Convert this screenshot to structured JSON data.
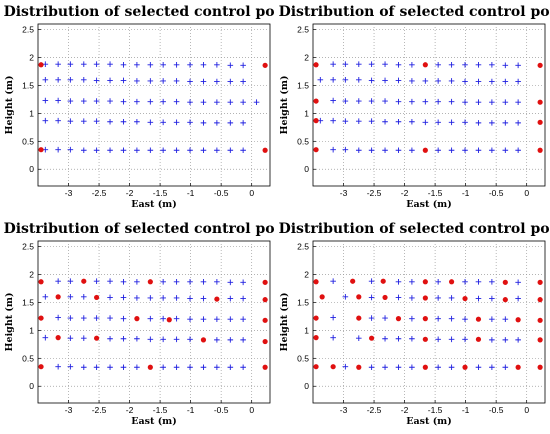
{
  "colors": {
    "candidate_marker": "#1f1fe0",
    "selected_marker": "#e01010",
    "grid": "#9a9a9a"
  },
  "chart_data": [
    {
      "type": "scatter",
      "title": "Distribution of selected control points",
      "xlabel": "East (m)",
      "ylabel": "Height (m)",
      "xlim": [
        -3.5,
        0.3
      ],
      "ylim": [
        -0.3,
        2.6
      ],
      "xticks": [
        -3,
        -2.5,
        -2,
        -1.5,
        -1,
        -0.5,
        0
      ],
      "xtick_labels": [
        "-3",
        "-2.5",
        "-2",
        "-1.5",
        "-1",
        "-0.5",
        "0"
      ],
      "yticks": [
        0,
        0.5,
        1,
        1.5,
        2,
        2.5
      ],
      "ytick_labels": [
        "0",
        "0.5",
        "1",
        "1.5",
        "2",
        "2.5"
      ],
      "grid": true,
      "series": [
        {
          "marker": "plus",
          "x": [
            -3.38,
            -3.17,
            -2.97,
            -2.75,
            -2.54,
            -2.32,
            -2.1,
            -1.88,
            -1.66,
            -1.45,
            -1.23,
            -1.01,
            -0.79,
            -0.57,
            -0.35,
            -0.14,
            -3.38,
            -3.17,
            -2.97,
            -2.75,
            -2.54,
            -2.32,
            -2.1,
            -1.88,
            -1.66,
            -1.45,
            -1.23,
            -1.01,
            -0.79,
            -0.57,
            -0.35,
            -0.14,
            -3.38,
            -3.17,
            -2.97,
            -2.75,
            -2.54,
            -2.32,
            -2.1,
            -1.88,
            -1.66,
            -1.45,
            -1.23,
            -1.01,
            -0.79,
            -0.57,
            -0.35,
            -0.14,
            -3.38,
            -3.17,
            -2.97,
            -2.75,
            -2.54,
            -2.32,
            -2.1,
            -1.88,
            -1.66,
            -1.45,
            -1.23,
            -1.01,
            -0.79,
            -0.57,
            -0.35,
            -0.14,
            -3.38,
            -3.17,
            -2.97,
            -2.75,
            -2.54,
            -2.32,
            -2.1,
            -1.88,
            -1.66,
            -1.45,
            -1.23,
            -1.01,
            -0.79,
            -0.57,
            -0.35,
            -0.14,
            0.08
          ],
          "y": [
            1.88,
            1.88,
            1.88,
            1.88,
            1.88,
            1.88,
            1.87,
            1.87,
            1.87,
            1.87,
            1.87,
            1.87,
            1.87,
            1.87,
            1.86,
            1.86,
            1.6,
            1.6,
            1.6,
            1.6,
            1.59,
            1.59,
            1.59,
            1.58,
            1.58,
            1.58,
            1.58,
            1.57,
            1.57,
            1.57,
            1.57,
            1.57,
            1.23,
            1.23,
            1.22,
            1.22,
            1.22,
            1.22,
            1.21,
            1.21,
            1.21,
            1.21,
            1.21,
            1.2,
            1.2,
            1.2,
            1.2,
            1.2,
            0.87,
            0.87,
            0.86,
            0.86,
            0.86,
            0.85,
            0.85,
            0.85,
            0.84,
            0.84,
            0.84,
            0.84,
            0.83,
            0.83,
            0.83,
            0.83,
            0.35,
            0.35,
            0.35,
            0.34,
            0.34,
            0.34,
            0.34,
            0.34,
            0.34,
            0.34,
            0.34,
            0.34,
            0.34,
            0.34,
            0.34,
            0.34,
            1.2
          ]
        },
        {
          "marker": "dot",
          "x": [
            -3.45,
            0.22,
            -3.45,
            0.22
          ],
          "y": [
            1.87,
            1.86,
            0.35,
            0.34
          ]
        }
      ]
    },
    {
      "type": "scatter",
      "title": "Distribution of selected control points",
      "xlabel": "East (m)",
      "ylabel": "Height (m)",
      "xlim": [
        -3.5,
        0.3
      ],
      "ylim": [
        -0.3,
        2.6
      ],
      "xticks": [
        -3,
        -2.5,
        -2,
        -1.5,
        -1,
        -0.5,
        0
      ],
      "xtick_labels": [
        "-3",
        "-2.5",
        "-2",
        "-1.5",
        "-1",
        "-0.5",
        "0"
      ],
      "yticks": [
        0,
        0.5,
        1,
        1.5,
        2,
        2.5
      ],
      "ytick_labels": [
        "0",
        "0.5",
        "1",
        "1.5",
        "2",
        "2.5"
      ],
      "grid": true,
      "series": [
        {
          "marker": "plus",
          "x": [
            -3.17,
            -2.97,
            -2.75,
            -2.54,
            -2.32,
            -2.1,
            -1.88,
            -1.45,
            -1.23,
            -1.01,
            -0.79,
            -0.57,
            -0.35,
            -0.14,
            -3.38,
            -3.17,
            -2.97,
            -2.75,
            -2.54,
            -2.32,
            -2.1,
            -1.88,
            -1.66,
            -1.45,
            -1.23,
            -1.01,
            -0.79,
            -0.57,
            -0.35,
            -0.14,
            -3.17,
            -2.97,
            -2.75,
            -2.54,
            -2.32,
            -2.1,
            -1.88,
            -1.66,
            -1.45,
            -1.23,
            -1.01,
            -0.79,
            -0.57,
            -0.35,
            -0.14,
            -3.38,
            -3.17,
            -2.97,
            -2.75,
            -2.54,
            -2.32,
            -2.1,
            -1.88,
            -1.66,
            -1.45,
            -1.23,
            -1.01,
            -0.79,
            -0.57,
            -0.35,
            -0.14,
            -3.17,
            -2.97,
            -2.75,
            -2.54,
            -2.32,
            -2.1,
            -1.88,
            -1.45,
            -1.23,
            -1.01,
            -0.79,
            -0.57,
            -0.35,
            -0.14
          ],
          "y": [
            1.88,
            1.88,
            1.88,
            1.88,
            1.88,
            1.87,
            1.87,
            1.87,
            1.87,
            1.87,
            1.87,
            1.87,
            1.86,
            1.86,
            1.6,
            1.6,
            1.6,
            1.6,
            1.59,
            1.59,
            1.59,
            1.58,
            1.58,
            1.58,
            1.58,
            1.57,
            1.57,
            1.57,
            1.57,
            1.57,
            1.23,
            1.22,
            1.22,
            1.22,
            1.22,
            1.21,
            1.21,
            1.21,
            1.21,
            1.21,
            1.2,
            1.2,
            1.2,
            1.2,
            1.2,
            0.87,
            0.87,
            0.86,
            0.86,
            0.86,
            0.85,
            0.85,
            0.85,
            0.84,
            0.84,
            0.84,
            0.84,
            0.83,
            0.83,
            0.83,
            0.83,
            0.35,
            0.35,
            0.34,
            0.34,
            0.34,
            0.34,
            0.34,
            0.34,
            0.34,
            0.34,
            0.34,
            0.34,
            0.34,
            0.34
          ]
        },
        {
          "marker": "dot",
          "x": [
            -3.45,
            -1.66,
            0.22,
            -3.45,
            0.22,
            -3.45,
            0.22,
            -1.66,
            -3.45,
            0.22
          ],
          "y": [
            1.87,
            1.87,
            1.86,
            1.22,
            1.2,
            0.87,
            0.84,
            0.34,
            0.35,
            0.34
          ]
        }
      ]
    },
    {
      "type": "scatter",
      "title": "Distribution of selected control points",
      "xlabel": "East (m)",
      "ylabel": "Height (m)",
      "xlim": [
        -3.5,
        0.3
      ],
      "ylim": [
        -0.3,
        2.6
      ],
      "xticks": [
        -3,
        -2.5,
        -2,
        -1.5,
        -1,
        -0.5,
        0
      ],
      "xtick_labels": [
        "-3",
        "-2.5",
        "-2",
        "-1.5",
        "-1",
        "-0.5",
        "0"
      ],
      "yticks": [
        0,
        0.5,
        1,
        1.5,
        2,
        2.5
      ],
      "ytick_labels": [
        "0",
        "0.5",
        "1",
        "1.5",
        "2",
        "2.5"
      ],
      "grid": true,
      "series": [
        {
          "marker": "plus",
          "x": [
            -3.17,
            -2.97,
            -2.54,
            -2.32,
            -2.1,
            -1.88,
            -1.45,
            -1.23,
            -1.01,
            -0.79,
            -0.57,
            -0.35,
            -0.14,
            -3.38,
            -2.97,
            -2.75,
            -2.32,
            -2.1,
            -1.88,
            -1.66,
            -1.45,
            -1.23,
            -1.01,
            -0.79,
            -0.35,
            -0.14,
            -3.17,
            -2.97,
            -2.75,
            -2.54,
            -2.32,
            -2.1,
            -1.66,
            -1.45,
            -1.23,
            -1.01,
            -0.79,
            -0.57,
            -0.35,
            -0.14,
            -3.38,
            -2.97,
            -2.75,
            -2.32,
            -2.1,
            -1.88,
            -1.66,
            -1.45,
            -1.23,
            -1.01,
            -0.57,
            -0.35,
            -0.14,
            -3.17,
            -2.97,
            -2.75,
            -2.54,
            -2.32,
            -2.1,
            -1.88,
            -1.45,
            -1.23,
            -1.01,
            -0.79,
            -0.57,
            -0.35,
            -0.14
          ],
          "y": [
            1.88,
            1.88,
            1.88,
            1.88,
            1.87,
            1.87,
            1.87,
            1.87,
            1.87,
            1.87,
            1.87,
            1.86,
            1.86,
            1.6,
            1.6,
            1.6,
            1.59,
            1.59,
            1.58,
            1.58,
            1.58,
            1.58,
            1.57,
            1.57,
            1.57,
            1.57,
            1.23,
            1.22,
            1.22,
            1.22,
            1.22,
            1.21,
            1.21,
            1.21,
            1.21,
            1.2,
            1.2,
            1.2,
            1.2,
            1.2,
            0.87,
            0.86,
            0.86,
            0.85,
            0.85,
            0.85,
            0.84,
            0.84,
            0.84,
            0.84,
            0.83,
            0.83,
            0.83,
            0.35,
            0.35,
            0.34,
            0.34,
            0.34,
            0.34,
            0.34,
            0.34,
            0.34,
            0.34,
            0.34,
            0.34,
            0.34,
            0.34
          ]
        },
        {
          "marker": "dot",
          "x": [
            -3.45,
            -2.75,
            -1.66,
            0.22,
            -3.17,
            -2.54,
            -0.57,
            0.22,
            -3.45,
            -1.88,
            -1.35,
            0.22,
            -3.17,
            -2.54,
            -0.79,
            0.22,
            -3.45,
            -1.66,
            0.22
          ],
          "y": [
            1.87,
            1.88,
            1.87,
            1.86,
            1.6,
            1.59,
            1.56,
            1.55,
            1.22,
            1.21,
            1.19,
            1.18,
            0.87,
            0.86,
            0.83,
            0.8,
            0.35,
            0.34,
            0.34
          ]
        }
      ]
    },
    {
      "type": "scatter",
      "title": "Distribution of selected control points",
      "xlabel": "East (m)",
      "ylabel": "Height (m)",
      "xlim": [
        -3.5,
        0.3
      ],
      "ylim": [
        -0.3,
        2.6
      ],
      "xticks": [
        -3,
        -2.5,
        -2,
        -1.5,
        -1,
        -0.5,
        0
      ],
      "xtick_labels": [
        "-3",
        "-2.5",
        "-2",
        "-1.5",
        "-1",
        "-0.5",
        "0"
      ],
      "yticks": [
        0,
        0.5,
        1,
        1.5,
        2,
        2.5
      ],
      "ytick_labels": [
        "0",
        "0.5",
        "1",
        "1.5",
        "2",
        "2.5"
      ],
      "grid": true,
      "series": [
        {
          "marker": "plus",
          "x": [
            -3.17,
            -2.54,
            -2.1,
            -1.88,
            -1.45,
            -1.01,
            -0.79,
            -0.57,
            -0.14,
            -2.97,
            -2.54,
            -2.1,
            -1.88,
            -1.45,
            -1.23,
            -0.79,
            -0.57,
            -0.14,
            -3.17,
            -2.54,
            -2.32,
            -1.88,
            -1.45,
            -1.23,
            -1.01,
            -0.57,
            -0.35,
            -3.17,
            -2.75,
            -2.32,
            -2.1,
            -1.88,
            -1.45,
            -1.23,
            -1.01,
            -0.57,
            -0.35,
            -0.14,
            -2.97,
            -2.54,
            -2.32,
            -2.1,
            -1.88,
            -1.45,
            -1.23,
            -0.79,
            -0.57,
            -0.35
          ],
          "y": [
            1.88,
            1.88,
            1.87,
            1.87,
            1.87,
            1.87,
            1.87,
            1.87,
            1.86,
            1.6,
            1.59,
            1.59,
            1.58,
            1.58,
            1.58,
            1.57,
            1.57,
            1.57,
            1.23,
            1.22,
            1.22,
            1.21,
            1.21,
            1.21,
            1.2,
            1.2,
            1.2,
            0.87,
            0.86,
            0.85,
            0.85,
            0.85,
            0.84,
            0.84,
            0.84,
            0.83,
            0.83,
            0.83,
            0.35,
            0.34,
            0.34,
            0.34,
            0.34,
            0.34,
            0.34,
            0.34,
            0.34,
            0.34
          ]
        },
        {
          "marker": "dot",
          "x": [
            -3.45,
            -2.85,
            -2.35,
            -1.66,
            -1.23,
            -0.35,
            0.22,
            -3.35,
            -2.75,
            -2.32,
            -1.66,
            -1.01,
            -0.35,
            0.22,
            -3.45,
            -2.75,
            -2.1,
            -1.66,
            -0.79,
            -0.14,
            0.22,
            -3.45,
            -2.54,
            -1.66,
            -0.79,
            0.22,
            -3.45,
            -3.17,
            -2.75,
            -1.66,
            -1.01,
            -0.14,
            0.22
          ],
          "y": [
            1.87,
            1.88,
            1.88,
            1.87,
            1.87,
            1.86,
            1.86,
            1.6,
            1.6,
            1.59,
            1.58,
            1.57,
            1.55,
            1.55,
            1.22,
            1.22,
            1.21,
            1.21,
            1.2,
            1.19,
            1.18,
            0.87,
            0.86,
            0.84,
            0.84,
            0.83,
            0.35,
            0.35,
            0.34,
            0.34,
            0.34,
            0.34,
            0.34
          ]
        }
      ]
    }
  ]
}
